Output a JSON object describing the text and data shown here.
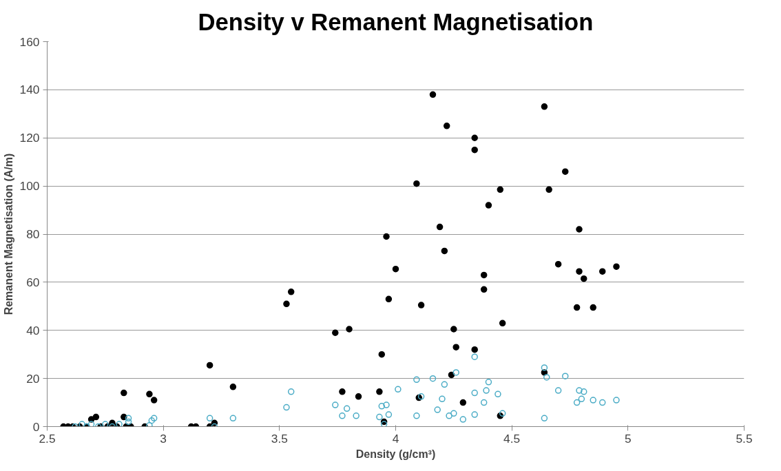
{
  "chart_data": {
    "type": "scatter",
    "title": "Density v Remanent Magnetisation",
    "xlabel": "Density (g/cm³)",
    "ylabel": "Remanent Magnetisation (A/m)",
    "xlim": [
      2.5,
      5.5
    ],
    "xticks": [
      2.5,
      3,
      3.5,
      4,
      4.5,
      5,
      5.5
    ],
    "ylim": [
      0,
      160
    ],
    "yticks": [
      0,
      20,
      40,
      60,
      80,
      100,
      120,
      140,
      160
    ],
    "grid": "y",
    "marker": "circle",
    "series": [
      {
        "color": "#000000",
        "x": [
          2.57,
          2.59,
          2.61,
          2.64,
          2.67,
          2.69,
          2.71,
          2.73,
          2.76,
          2.78,
          2.8,
          2.83,
          2.84,
          2.86,
          2.83,
          2.94,
          2.96,
          2.92,
          3.12,
          3.14,
          3.2,
          3.2,
          3.22,
          3.3,
          3.53,
          3.55,
          3.74,
          3.8,
          3.77,
          3.84,
          3.93,
          3.94,
          3.95,
          3.96,
          3.97,
          4.0,
          4.09,
          4.1,
          4.11,
          4.16,
          4.19,
          4.21,
          4.22,
          4.24,
          4.25,
          4.26,
          4.29,
          4.34,
          4.34,
          4.34,
          4.38,
          4.38,
          4.4,
          4.45,
          4.45,
          4.46,
          4.64,
          4.64,
          4.66,
          4.7,
          4.73,
          4.78,
          4.79,
          4.79,
          4.81,
          4.85,
          4.89,
          4.95
        ],
        "values": [
          0,
          0,
          0,
          0,
          0,
          3,
          4,
          0,
          0,
          1.5,
          0,
          4,
          0,
          0,
          14,
          13.5,
          11,
          0,
          0,
          0,
          25.5,
          0,
          1.5,
          16.5,
          51,
          56,
          39,
          40.5,
          14.5,
          12.5,
          14.5,
          30,
          2,
          79,
          53,
          65.5,
          101,
          12,
          50.5,
          138,
          83,
          73,
          125,
          21.5,
          40.5,
          33,
          10,
          120,
          115,
          32,
          63,
          57,
          92,
          98.5,
          4.5,
          43,
          133,
          22.5,
          98.5,
          67.5,
          106,
          49.5,
          82,
          64.5,
          61.5,
          49.5,
          64.5,
          66.5
        ]
      },
      {
        "color": "#4bacc6",
        "x": [
          2.62,
          2.65,
          2.67,
          2.69,
          2.72,
          2.75,
          2.78,
          2.81,
          2.85,
          2.85,
          2.95,
          2.96,
          2.94,
          3.2,
          3.22,
          3.3,
          3.53,
          3.55,
          3.74,
          3.77,
          3.79,
          3.83,
          3.93,
          3.94,
          3.95,
          3.96,
          3.97,
          4.01,
          4.09,
          4.09,
          4.11,
          4.16,
          4.18,
          4.2,
          4.21,
          4.23,
          4.25,
          4.26,
          4.29,
          4.34,
          4.34,
          4.34,
          4.38,
          4.39,
          4.4,
          4.44,
          4.46,
          4.64,
          4.65,
          4.64,
          4.7,
          4.73,
          4.78,
          4.79,
          4.8,
          4.81,
          4.85,
          4.89,
          4.95
        ],
        "values": [
          0,
          1,
          0,
          1,
          0,
          1,
          0,
          1,
          2,
          3.5,
          2.5,
          3.5,
          0.5,
          3.5,
          0,
          3.5,
          8,
          14.5,
          9,
          4.5,
          7.5,
          4.5,
          4,
          8.5,
          1,
          9,
          5,
          15.5,
          19.5,
          4.5,
          12.5,
          20,
          7,
          11.5,
          17.5,
          4.5,
          5.5,
          22.5,
          3,
          29,
          14,
          5,
          10,
          15,
          18.5,
          13.5,
          5.5,
          24.5,
          20.5,
          3.5,
          15,
          21,
          10,
          15,
          11.5,
          14.5,
          11,
          10,
          11
        ]
      }
    ]
  }
}
